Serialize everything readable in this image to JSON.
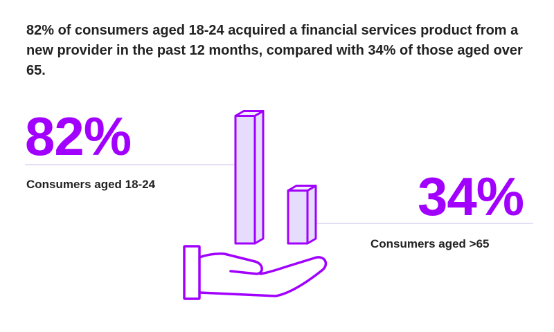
{
  "headline": "82% of consumers aged 18-24 acquired a financial services product from a new provider in the past 12 months, compared with 34% of those aged over 65.",
  "chart_data": {
    "type": "bar",
    "categories": [
      "Consumers aged 18-24",
      "Consumers aged >65"
    ],
    "values": [
      82,
      34
    ],
    "value_labels": [
      "82%",
      "34%"
    ],
    "title": "",
    "xlabel": "",
    "ylabel": "",
    "ylim": [
      0,
      100
    ],
    "grid": false,
    "legend": "none"
  },
  "colors": {
    "accent": "#a100ff",
    "bar_fill": "#e6dcfb",
    "rule": "#e4ddf3",
    "text": "#222222"
  },
  "icons": {
    "hand": "open-hand-icon"
  }
}
